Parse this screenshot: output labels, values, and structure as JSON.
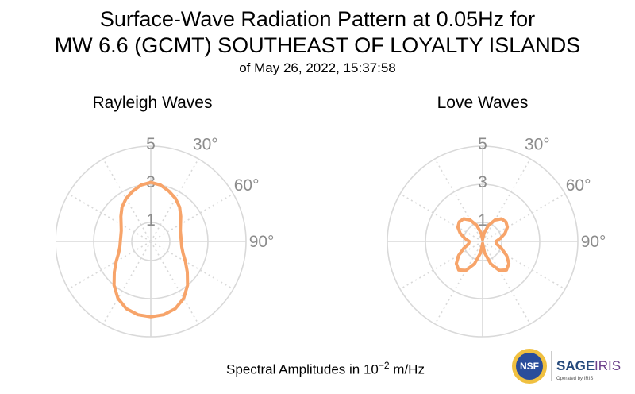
{
  "title": {
    "line1": "Surface-Wave Radiation Pattern at 0.05Hz for",
    "line2": "MW 6.6 (GCMT) SOUTHEAST OF LOYALTY ISLANDS",
    "line3": "of May 26, 2022, 15:37:58"
  },
  "footer": {
    "label_prefix": "Spectral Amplitudes in 10",
    "exponent": "−2",
    "unit": " m/Hz"
  },
  "logo": {
    "nsf_text": "NSF",
    "sage_text": "SAGE",
    "iris_text": "IRIS",
    "operated_by": "Operated by IRIS"
  },
  "colors": {
    "curve": "#f7a46a",
    "grid": "#d9d9d9",
    "tick_text": "#8c8c8c",
    "nsf_blue": "#2a4d9b",
    "sage_blue": "#264a7c",
    "iris_purple": "#6b3f8a"
  },
  "chart_data": [
    {
      "type": "polar-line",
      "title": "Rayleigh Waves",
      "radial_ticks": [
        "1",
        "3",
        "5"
      ],
      "radial_range": [
        0,
        5
      ],
      "angle_ticks": [
        "30°",
        "60°",
        "90°"
      ],
      "theta_deg": [
        0,
        10,
        20,
        30,
        40,
        50,
        60,
        70,
        80,
        90,
        100,
        110,
        120,
        130,
        140,
        150,
        160,
        170,
        180,
        190,
        200,
        210,
        220,
        230,
        240,
        250,
        260,
        270,
        280,
        290,
        300,
        310,
        320,
        330,
        340,
        350,
        360
      ],
      "amplitude": [
        3.1,
        3.0,
        2.8,
        2.6,
        2.35,
        2.05,
        1.8,
        1.65,
        1.6,
        1.6,
        1.65,
        1.8,
        2.1,
        2.5,
        3.0,
        3.45,
        3.75,
        3.9,
        3.95,
        3.9,
        3.75,
        3.45,
        3.0,
        2.5,
        2.1,
        1.8,
        1.65,
        1.6,
        1.6,
        1.65,
        1.8,
        2.05,
        2.35,
        2.6,
        2.8,
        3.0,
        3.1
      ]
    },
    {
      "type": "polar-line",
      "title": "Love Waves",
      "radial_ticks": [
        "1",
        "3",
        "5"
      ],
      "radial_range": [
        0,
        5
      ],
      "angle_ticks": [
        "30°",
        "60°",
        "90°"
      ],
      "theta_deg": [
        0,
        10,
        20,
        30,
        40,
        50,
        60,
        70,
        80,
        90,
        100,
        110,
        120,
        130,
        140,
        150,
        160,
        170,
        180,
        190,
        200,
        210,
        220,
        230,
        240,
        250,
        260,
        270,
        280,
        290,
        300,
        310,
        320,
        330,
        340,
        350,
        360
      ],
      "amplitude": [
        0.1,
        0.45,
        0.9,
        1.3,
        1.55,
        1.6,
        1.5,
        1.25,
        0.95,
        0.7,
        0.75,
        1.05,
        1.45,
        1.8,
        1.95,
        1.75,
        1.25,
        0.6,
        0.1,
        0.6,
        1.25,
        1.75,
        1.95,
        1.8,
        1.45,
        1.05,
        0.75,
        0.7,
        0.95,
        1.25,
        1.5,
        1.6,
        1.55,
        1.3,
        0.9,
        0.45,
        0.1
      ]
    }
  ]
}
